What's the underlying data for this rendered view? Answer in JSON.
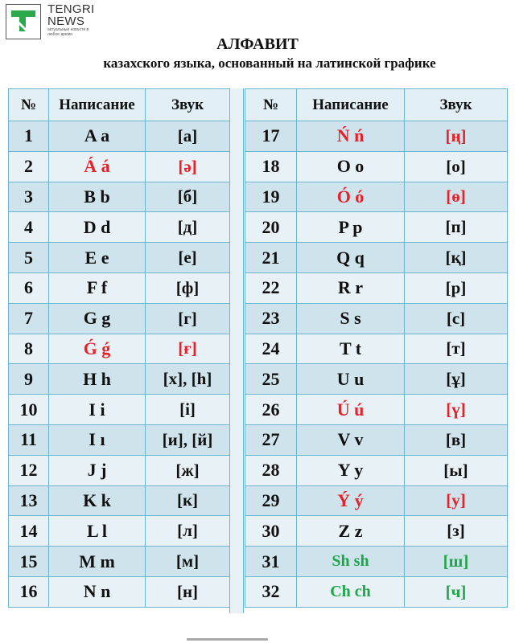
{
  "logo": {
    "line1": "TENGRI",
    "line2": "NEWS",
    "tagline": "актуальные новости в любое время",
    "color": "#2aa84a"
  },
  "title": "АЛФАВИТ",
  "subtitle": "казахского языка, основанный на латинской графике",
  "headers": {
    "num": "№",
    "spelling": "Написание",
    "sound": "Звук"
  },
  "colors": {
    "border": "#6ab5d0",
    "highlight_red": "#e8202a",
    "highlight_green": "#1fa64a"
  },
  "rows": [
    {
      "num": "1",
      "letter": "A a",
      "sound": "[а]",
      "hl": ""
    },
    {
      "num": "2",
      "letter": "Á á",
      "sound": "[ә]",
      "hl": "red"
    },
    {
      "num": "3",
      "letter": "B b",
      "sound": "[б]",
      "hl": ""
    },
    {
      "num": "4",
      "letter": "D d",
      "sound": "[д]",
      "hl": ""
    },
    {
      "num": "5",
      "letter": "E e",
      "sound": "[е]",
      "hl": ""
    },
    {
      "num": "6",
      "letter": "F f",
      "sound": "[ф]",
      "hl": ""
    },
    {
      "num": "7",
      "letter": "G g",
      "sound": "[г]",
      "hl": ""
    },
    {
      "num": "8",
      "letter": "Ǵ ǵ",
      "sound": "[ғ]",
      "hl": "red"
    },
    {
      "num": "9",
      "letter": "H h",
      "sound": "[х],  [h]",
      "hl": ""
    },
    {
      "num": "10",
      "letter": "I i",
      "sound": "[і]",
      "hl": ""
    },
    {
      "num": "11",
      "letter": "I ı",
      "sound": "[и], [й]",
      "hl": ""
    },
    {
      "num": "12",
      "letter": "J j",
      "sound": "[ж]",
      "hl": ""
    },
    {
      "num": "13",
      "letter": "K k",
      "sound": "[к]",
      "hl": ""
    },
    {
      "num": "14",
      "letter": "L l",
      "sound": "[л]",
      "hl": ""
    },
    {
      "num": "15",
      "letter": "M m",
      "sound": "[м]",
      "hl": ""
    },
    {
      "num": "16",
      "letter": "N n",
      "sound": "[н]",
      "hl": ""
    },
    {
      "num": "17",
      "letter": "Ń ń",
      "sound": "[ң]",
      "hl": "red"
    },
    {
      "num": "18",
      "letter": "O o",
      "sound": "[о]",
      "hl": ""
    },
    {
      "num": "19",
      "letter": "Ó ó",
      "sound": "[ө]",
      "hl": "red"
    },
    {
      "num": "20",
      "letter": "P p",
      "sound": "[п]",
      "hl": ""
    },
    {
      "num": "21",
      "letter": "Q q",
      "sound": "[қ]",
      "hl": ""
    },
    {
      "num": "22",
      "letter": "R r",
      "sound": "[р]",
      "hl": ""
    },
    {
      "num": "23",
      "letter": "S s",
      "sound": "[с]",
      "hl": ""
    },
    {
      "num": "24",
      "letter": "T t",
      "sound": "[т]",
      "hl": ""
    },
    {
      "num": "25",
      "letter": "U u",
      "sound": "[ұ]",
      "hl": ""
    },
    {
      "num": "26",
      "letter": "Ú ú",
      "sound": "[ү]",
      "hl": "red"
    },
    {
      "num": "27",
      "letter": "V v",
      "sound": "[в]",
      "hl": ""
    },
    {
      "num": "28",
      "letter": "Y y",
      "sound": "[ы]",
      "hl": ""
    },
    {
      "num": "29",
      "letter": "Ý ý",
      "sound": "[у]",
      "hl": "red"
    },
    {
      "num": "30",
      "letter": "Z z",
      "sound": "[з]",
      "hl": ""
    },
    {
      "num": "31",
      "letter": "Sh sh",
      "sound": "[ш]",
      "hl": "green"
    },
    {
      "num": "32",
      "letter": "Ch ch",
      "sound": "[ч]",
      "hl": "green"
    }
  ]
}
